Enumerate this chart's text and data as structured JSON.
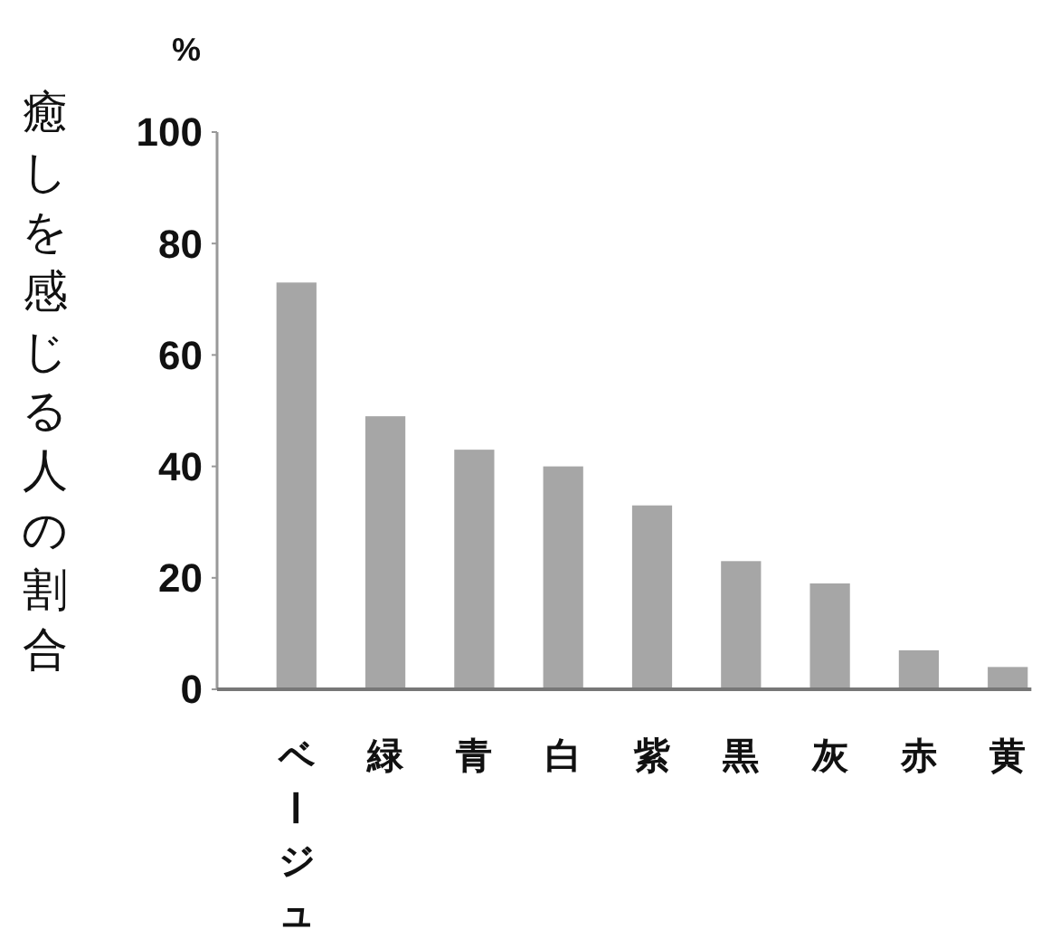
{
  "chart_data": {
    "type": "bar",
    "ylabel": "癒しを感じる人の割合",
    "annotations": [
      "%"
    ],
    "categories": [
      "ベージュ",
      "緑",
      "青",
      "白",
      "紫",
      "黒",
      "灰",
      "赤",
      "黄"
    ],
    "values": [
      73,
      49,
      43,
      40,
      33,
      23,
      19,
      7,
      4
    ],
    "color": "#a6a6a6",
    "ylim": [
      0,
      100
    ],
    "yticks": [
      0,
      20,
      40,
      60,
      80,
      100
    ],
    "grid": false
  }
}
